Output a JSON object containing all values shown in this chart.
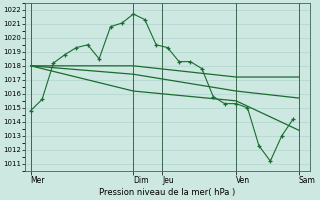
{
  "bg_color": "#cce8e0",
  "grid_color": "#b0d4cc",
  "line_color": "#1a6b30",
  "xlabel": "Pression niveau de la mer( hPa )",
  "ylim": [
    1010.5,
    1022.5
  ],
  "yticks": [
    1011,
    1012,
    1013,
    1014,
    1015,
    1016,
    1017,
    1018,
    1019,
    1020,
    1021,
    1022
  ],
  "xlim": [
    0,
    25
  ],
  "day_labels": [
    "Mer",
    "Dim",
    "Jeu",
    "Ven",
    "Sam"
  ],
  "day_positions": [
    0.5,
    9.5,
    12.0,
    18.5,
    24.0
  ],
  "vline_positions": [
    0.5,
    9.5,
    12.0,
    18.5,
    24.0
  ],
  "series": [
    {
      "x": [
        0.5,
        1.5,
        2.5,
        3.5,
        4.5,
        5.5,
        6.5,
        7.5,
        8.5,
        9.5,
        10.5,
        11.5,
        12.5,
        13.5,
        14.5,
        15.5,
        16.5,
        17.5,
        18.5,
        19.5,
        20.5,
        21.5,
        22.5,
        23.5
      ],
      "y": [
        1014.8,
        1015.6,
        1018.2,
        1018.8,
        1019.3,
        1019.5,
        1018.5,
        1020.8,
        1021.05,
        1021.7,
        1021.3,
        1019.5,
        1019.3,
        1018.3,
        1018.3,
        1017.8,
        1015.8,
        1015.3,
        1015.3,
        1015.0,
        1012.3,
        1011.2,
        1013.0,
        1014.2
      ],
      "marker": true
    },
    {
      "x": [
        0.5,
        9.5,
        18.5,
        24.0
      ],
      "y": [
        1018.0,
        1018.0,
        1017.2,
        1017.2
      ],
      "marker": false
    },
    {
      "x": [
        0.5,
        9.5,
        18.5,
        24.0
      ],
      "y": [
        1018.0,
        1017.4,
        1016.2,
        1015.7
      ],
      "marker": false
    },
    {
      "x": [
        0.5,
        9.5,
        18.5,
        24.0
      ],
      "y": [
        1018.0,
        1016.2,
        1015.5,
        1013.4
      ],
      "marker": false
    }
  ],
  "figsize": [
    3.2,
    2.0
  ],
  "dpi": 100
}
